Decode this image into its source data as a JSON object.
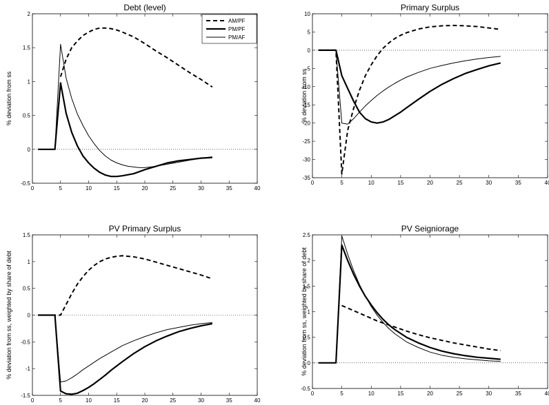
{
  "chart_data": [
    {
      "type": "line",
      "title": "Debt (level)",
      "ylabel": "% deviation from ss",
      "xlabel": "",
      "xlim": [
        0,
        40
      ],
      "ylim": [
        -0.5,
        2
      ],
      "xticks": [
        0,
        5,
        10,
        15,
        20,
        25,
        30,
        35,
        40
      ],
      "yticks": [
        -0.5,
        0,
        0.5,
        1,
        1.5,
        2
      ],
      "ytick_labels": [
        "-0.5",
        "0",
        "0.5",
        "1",
        "1.5",
        "2"
      ],
      "zero_line": "dotted",
      "legend": {
        "placement": "top-right",
        "entries": [
          "AM/PF",
          "PM/PF",
          "PM/AF"
        ]
      },
      "series": [
        {
          "name": "AM/PF",
          "style": "dashed",
          "x": [
            5,
            6,
            7,
            8,
            9,
            10,
            11,
            12,
            13,
            14,
            15,
            16,
            18,
            20,
            22,
            24,
            26,
            28,
            30,
            32
          ],
          "y": [
            1.07,
            1.33,
            1.5,
            1.6,
            1.68,
            1.73,
            1.77,
            1.79,
            1.79,
            1.78,
            1.76,
            1.73,
            1.66,
            1.56,
            1.45,
            1.35,
            1.24,
            1.13,
            1.03,
            0.92
          ]
        },
        {
          "name": "PM/PF",
          "style": "thick",
          "x": [
            1,
            2,
            3,
            4,
            5,
            6,
            7,
            8,
            9,
            10,
            11,
            12,
            13,
            14,
            15,
            16,
            18,
            20,
            22,
            24,
            26,
            28,
            30,
            32
          ],
          "y": [
            0,
            0,
            0,
            0,
            0.98,
            0.53,
            0.25,
            0.05,
            -0.1,
            -0.2,
            -0.28,
            -0.34,
            -0.38,
            -0.4,
            -0.4,
            -0.39,
            -0.36,
            -0.3,
            -0.25,
            -0.2,
            -0.17,
            -0.15,
            -0.13,
            -0.12
          ]
        },
        {
          "name": "PM/AF",
          "style": "thin",
          "x": [
            1,
            2,
            3,
            4,
            5,
            6,
            7,
            8,
            9,
            10,
            11,
            12,
            13,
            14,
            15,
            16,
            17,
            18,
            19,
            20,
            22,
            24,
            26,
            28,
            30,
            32
          ],
          "y": [
            0,
            0,
            0,
            0,
            1.55,
            1.05,
            0.75,
            0.52,
            0.35,
            0.2,
            0.08,
            -0.02,
            -0.1,
            -0.16,
            -0.2,
            -0.23,
            -0.25,
            -0.26,
            -0.27,
            -0.27,
            -0.25,
            -0.22,
            -0.19,
            -0.16,
            -0.13,
            -0.11
          ]
        }
      ]
    },
    {
      "type": "line",
      "title": "Primary Surplus",
      "ylabel": "% deviation from ss",
      "xlabel": "",
      "xlim": [
        0,
        40
      ],
      "ylim": [
        -35,
        10
      ],
      "xticks": [
        0,
        5,
        10,
        15,
        20,
        25,
        30,
        35,
        40
      ],
      "yticks": [
        -35,
        -30,
        -25,
        -20,
        -15,
        -10,
        -5,
        0,
        5,
        10
      ],
      "ytick_labels": [
        "-35",
        "-30",
        "-25",
        "-20",
        "-15",
        "-10",
        "-5",
        "0",
        "5",
        "10"
      ],
      "zero_line": "dotted",
      "series": [
        {
          "name": "AM/PF",
          "style": "dashed",
          "x": [
            1,
            2,
            3,
            4,
            5,
            6,
            7,
            8,
            9,
            10,
            11,
            12,
            13,
            14,
            15,
            16,
            18,
            20,
            22,
            24,
            26,
            28,
            30,
            32
          ],
          "y": [
            0,
            0,
            0,
            0,
            -34,
            -22,
            -16,
            -11,
            -7,
            -4,
            -1.5,
            0.5,
            2,
            3.2,
            4.1,
            4.8,
            5.8,
            6.4,
            6.7,
            6.8,
            6.7,
            6.5,
            6.1,
            5.7
          ]
        },
        {
          "name": "PM/PF",
          "style": "thick",
          "x": [
            1,
            2,
            3,
            4,
            5,
            6,
            7,
            8,
            9,
            10,
            11,
            12,
            13,
            14,
            15,
            16,
            18,
            20,
            22,
            24,
            26,
            28,
            30,
            32
          ],
          "y": [
            0,
            0,
            0,
            0,
            -7,
            -10.5,
            -14,
            -17,
            -18.8,
            -19.7,
            -20,
            -19.7,
            -19,
            -18,
            -17,
            -15.8,
            -13.5,
            -11.3,
            -9.4,
            -7.8,
            -6.4,
            -5.3,
            -4.3,
            -3.5
          ]
        },
        {
          "name": "PM/AF",
          "style": "thin",
          "x": [
            1,
            2,
            3,
            4,
            5,
            6,
            7,
            8,
            9,
            10,
            11,
            12,
            13,
            14,
            15,
            16,
            18,
            20,
            22,
            24,
            26,
            28,
            30,
            32
          ],
          "y": [
            0,
            0,
            0,
            0,
            -20,
            -20.3,
            -18.8,
            -17,
            -15.3,
            -13.8,
            -12.4,
            -11.2,
            -10.1,
            -9.1,
            -8.2,
            -7.4,
            -6.1,
            -5,
            -4.2,
            -3.5,
            -2.9,
            -2.4,
            -2,
            -1.7
          ]
        }
      ]
    },
    {
      "type": "line",
      "title": "PV Primary Surplus",
      "ylabel": "% deviation from ss, weighted by share of debt",
      "xlabel": "",
      "xlim": [
        0,
        40
      ],
      "ylim": [
        -1.5,
        1.5
      ],
      "xticks": [
        0,
        5,
        10,
        15,
        20,
        25,
        30,
        35,
        40
      ],
      "yticks": [
        -1.5,
        -1,
        -0.5,
        0,
        0.5,
        1,
        1.5
      ],
      "ytick_labels": [
        "-1.5",
        "-1",
        "-0.5",
        "0",
        "0.5",
        "1",
        "1.5"
      ],
      "zero_line": "dotted",
      "series": [
        {
          "name": "AM/PF",
          "style": "dashed",
          "x": [
            1,
            2,
            3,
            4,
            5,
            6,
            7,
            8,
            9,
            10,
            11,
            12,
            13,
            14,
            15,
            16,
            17,
            18,
            20,
            22,
            24,
            26,
            28,
            30,
            32
          ],
          "y": [
            0,
            0,
            0,
            0,
            0,
            0.2,
            0.4,
            0.58,
            0.72,
            0.84,
            0.93,
            1.0,
            1.05,
            1.08,
            1.1,
            1.11,
            1.1,
            1.09,
            1.05,
            0.99,
            0.93,
            0.87,
            0.81,
            0.75,
            0.68
          ]
        },
        {
          "name": "PM/PF",
          "style": "thick",
          "x": [
            1,
            2,
            3,
            4,
            5,
            6,
            7,
            8,
            9,
            10,
            11,
            12,
            13,
            14,
            15,
            16,
            18,
            20,
            22,
            24,
            26,
            28,
            30,
            32
          ],
          "y": [
            0,
            0,
            0,
            0,
            -1.42,
            -1.47,
            -1.48,
            -1.46,
            -1.41,
            -1.35,
            -1.28,
            -1.2,
            -1.12,
            -1.03,
            -0.95,
            -0.87,
            -0.72,
            -0.59,
            -0.48,
            -0.39,
            -0.31,
            -0.25,
            -0.2,
            -0.16
          ]
        },
        {
          "name": "PM/AF",
          "style": "thin",
          "x": [
            1,
            2,
            3,
            4,
            5,
            6,
            7,
            8,
            9,
            10,
            11,
            12,
            13,
            14,
            15,
            16,
            18,
            20,
            22,
            24,
            26,
            28,
            30,
            32
          ],
          "y": [
            0,
            0,
            0,
            0,
            -1.25,
            -1.23,
            -1.17,
            -1.1,
            -1.02,
            -0.95,
            -0.88,
            -0.81,
            -0.75,
            -0.69,
            -0.63,
            -0.57,
            -0.48,
            -0.4,
            -0.33,
            -0.27,
            -0.23,
            -0.19,
            -0.16,
            -0.14
          ]
        }
      ]
    },
    {
      "type": "line",
      "title": "PV Seigniorage",
      "ylabel": "% deviation from ss, weighted by share of debt",
      "xlabel": "",
      "xlim": [
        0,
        40
      ],
      "ylim": [
        -0.5,
        2.5
      ],
      "xticks": [
        0,
        5,
        10,
        15,
        20,
        25,
        30,
        35,
        40
      ],
      "yticks": [
        -0.5,
        0,
        0.5,
        1,
        1.5,
        2,
        2.5
      ],
      "ytick_labels": [
        "-0.5",
        "0",
        "0.5",
        "1",
        "1.5",
        "2",
        "2.5"
      ],
      "zero_line": "dotted",
      "series": [
        {
          "name": "AM/PF",
          "style": "dashed",
          "x": [
            5,
            6,
            7,
            8,
            9,
            10,
            11,
            12,
            13,
            14,
            16,
            18,
            20,
            22,
            24,
            26,
            28,
            30,
            32
          ],
          "y": [
            1.12,
            1.07,
            1.02,
            0.97,
            0.92,
            0.87,
            0.82,
            0.78,
            0.74,
            0.7,
            0.62,
            0.55,
            0.49,
            0.44,
            0.39,
            0.35,
            0.31,
            0.27,
            0.24
          ]
        },
        {
          "name": "PM/PF",
          "style": "thick",
          "x": [
            1,
            2,
            3,
            4,
            5,
            6,
            7,
            8,
            9,
            10,
            11,
            12,
            13,
            14,
            16,
            18,
            20,
            22,
            24,
            26,
            28,
            30,
            32
          ],
          "y": [
            0,
            0,
            0,
            0,
            2.3,
            2.0,
            1.73,
            1.5,
            1.3,
            1.13,
            0.98,
            0.85,
            0.74,
            0.65,
            0.5,
            0.39,
            0.3,
            0.23,
            0.18,
            0.14,
            0.11,
            0.09,
            0.07
          ]
        },
        {
          "name": "PM/AF",
          "style": "thin",
          "x": [
            1,
            2,
            3,
            4,
            5,
            6,
            7,
            8,
            9,
            10,
            11,
            12,
            13,
            14,
            16,
            18,
            20,
            22,
            24,
            26,
            28,
            30,
            32
          ],
          "y": [
            0,
            0,
            0,
            0,
            2.48,
            2.12,
            1.8,
            1.53,
            1.3,
            1.1,
            0.93,
            0.79,
            0.67,
            0.57,
            0.41,
            0.3,
            0.21,
            0.15,
            0.11,
            0.08,
            0.06,
            0.04,
            0.03
          ]
        }
      ]
    }
  ]
}
